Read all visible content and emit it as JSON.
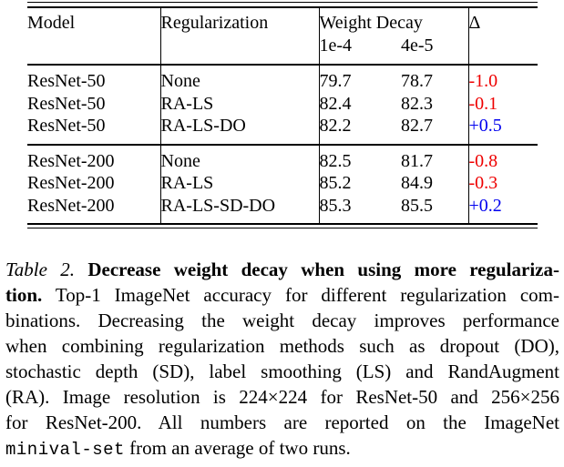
{
  "table": {
    "header": {
      "model": "Model",
      "regularization": "Regularization",
      "weight_decay": "Weight Decay",
      "wd_col1": "1e-4",
      "wd_col2": "4e-5",
      "delta": "Δ"
    },
    "rows": [
      {
        "model": "ResNet-50",
        "reg": "None",
        "wd1": "79.7",
        "wd2": "78.7",
        "delta": "-1.0"
      },
      {
        "model": "ResNet-50",
        "reg": "RA-LS",
        "wd1": "82.4",
        "wd2": "82.3",
        "delta": "-0.1"
      },
      {
        "model": "ResNet-50",
        "reg": "RA-LS-DO",
        "wd1": "82.2",
        "wd2": "82.7",
        "delta": "+0.5"
      },
      {
        "model": "ResNet-200",
        "reg": "None",
        "wd1": "82.5",
        "wd2": "81.7",
        "delta": "-0.8"
      },
      {
        "model": "ResNet-200",
        "reg": "RA-LS",
        "wd1": "85.2",
        "wd2": "84.9",
        "delta": "-0.3"
      },
      {
        "model": "ResNet-200",
        "reg": "RA-LS-SD-DO",
        "wd1": "85.3",
        "wd2": "85.5",
        "delta": "+0.2"
      }
    ]
  },
  "colors": {
    "delta_negative": "#ee0000",
    "delta_positive": "#0000ee",
    "text": "#000000",
    "rules": "#000000"
  },
  "caption": {
    "line1_label": "Table 2.",
    "line1_title": " Decrease weight decay when using more regulariza-",
    "line2_bold": "tion.",
    "line2_text": " Top-1 ImageNet accuracy for different regularization com-",
    "line3": "binations.  Decreasing the weight decay improves performance",
    "line4": "when combining regularization methods such as dropout (DO),",
    "line5": "stochastic depth (SD), label smoothing (LS) and RandAugment",
    "line6": "(RA). Image resolution is 224×224 for ResNet-50 and 256×256",
    "line7": "for ResNet-200.  All numbers are reported on the ImageNet",
    "line8_code": "minival-set",
    "line8_text": " from an average of two runs."
  }
}
